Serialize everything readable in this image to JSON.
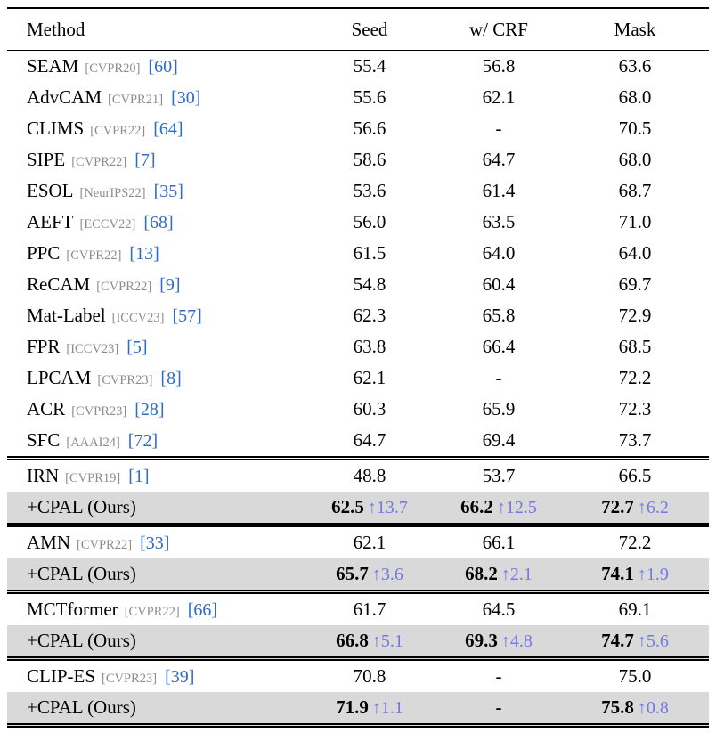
{
  "colors": {
    "citation": "#2e6bc6",
    "venue": "#8c8c8c",
    "delta": "#7577e8",
    "ours_bg": "#d9d9d9"
  },
  "table": {
    "headers": [
      "Method",
      "Seed",
      "w/ CRF",
      "Mask"
    ],
    "sections": [
      {
        "rows": [
          {
            "method": "SEAM",
            "venue": "[CVPR20]",
            "cite": "[60]",
            "cells": [
              {
                "value": "55.4"
              },
              {
                "value": "56.8"
              },
              {
                "value": "63.6"
              }
            ]
          },
          {
            "method": "AdvCAM",
            "venue": "[CVPR21]",
            "cite": "[30]",
            "cells": [
              {
                "value": "55.6"
              },
              {
                "value": "62.1"
              },
              {
                "value": "68.0"
              }
            ]
          },
          {
            "method": "CLIMS",
            "venue": "[CVPR22]",
            "cite": "[64]",
            "cells": [
              {
                "value": "56.6"
              },
              {
                "value": "-"
              },
              {
                "value": "70.5"
              }
            ]
          },
          {
            "method": "SIPE",
            "venue": "[CVPR22]",
            "cite": "[7]",
            "cells": [
              {
                "value": "58.6"
              },
              {
                "value": "64.7"
              },
              {
                "value": "68.0"
              }
            ]
          },
          {
            "method": "ESOL",
            "venue": "[NeurIPS22]",
            "cite": "[35]",
            "cells": [
              {
                "value": "53.6"
              },
              {
                "value": "61.4"
              },
              {
                "value": "68.7"
              }
            ]
          },
          {
            "method": "AEFT",
            "venue": "[ECCV22]",
            "cite": "[68]",
            "cells": [
              {
                "value": "56.0"
              },
              {
                "value": "63.5"
              },
              {
                "value": "71.0"
              }
            ]
          },
          {
            "method": "PPC",
            "venue": "[CVPR22]",
            "cite": "[13]",
            "cells": [
              {
                "value": "61.5"
              },
              {
                "value": "64.0"
              },
              {
                "value": "64.0"
              }
            ]
          },
          {
            "method": "ReCAM",
            "venue": "[CVPR22]",
            "cite": "[9]",
            "cells": [
              {
                "value": "54.8"
              },
              {
                "value": "60.4"
              },
              {
                "value": "69.7"
              }
            ]
          },
          {
            "method": "Mat-Label",
            "venue": "[ICCV23]",
            "cite": "[57]",
            "cells": [
              {
                "value": "62.3"
              },
              {
                "value": "65.8"
              },
              {
                "value": "72.9"
              }
            ]
          },
          {
            "method": "FPR",
            "venue": "[ICCV23]",
            "cite": "[5]",
            "cells": [
              {
                "value": "63.8"
              },
              {
                "value": "66.4"
              },
              {
                "value": "68.5"
              }
            ]
          },
          {
            "method": "LPCAM",
            "venue": "[CVPR23]",
            "cite": "[8]",
            "cells": [
              {
                "value": "62.1"
              },
              {
                "value": "-"
              },
              {
                "value": "72.2"
              }
            ]
          },
          {
            "method": "ACR",
            "venue": "[CVPR23]",
            "cite": "[28]",
            "cells": [
              {
                "value": "60.3"
              },
              {
                "value": "65.9"
              },
              {
                "value": "72.3"
              }
            ]
          },
          {
            "method": "SFC",
            "venue": "[AAAI24]",
            "cite": "[72]",
            "cells": [
              {
                "value": "64.7"
              },
              {
                "value": "69.4"
              },
              {
                "value": "73.7"
              }
            ]
          }
        ]
      },
      {
        "rows": [
          {
            "method": "IRN",
            "venue": "[CVPR19]",
            "cite": "[1]",
            "cells": [
              {
                "value": "48.8"
              },
              {
                "value": "53.7"
              },
              {
                "value": "66.5"
              }
            ]
          },
          {
            "method": "+CPAL (Ours)",
            "ours": true,
            "cells": [
              {
                "value": "62.5",
                "delta": "↑13.7"
              },
              {
                "value": "66.2",
                "delta": "↑12.5"
              },
              {
                "value": "72.7",
                "delta": "↑6.2"
              }
            ]
          }
        ]
      },
      {
        "rows": [
          {
            "method": "AMN",
            "venue": "[CVPR22]",
            "cite": "[33]",
            "cells": [
              {
                "value": "62.1"
              },
              {
                "value": "66.1"
              },
              {
                "value": "72.2"
              }
            ]
          },
          {
            "method": "+CPAL (Ours)",
            "ours": true,
            "cells": [
              {
                "value": "65.7",
                "delta": "↑3.6"
              },
              {
                "value": "68.2",
                "delta": "↑2.1"
              },
              {
                "value": "74.1",
                "delta": "↑1.9"
              }
            ]
          }
        ]
      },
      {
        "rows": [
          {
            "method": "MCTformer",
            "venue": "[CVPR22]",
            "cite": "[66]",
            "cells": [
              {
                "value": "61.7"
              },
              {
                "value": "64.5"
              },
              {
                "value": "69.1"
              }
            ]
          },
          {
            "method": "+CPAL (Ours)",
            "ours": true,
            "cells": [
              {
                "value": "66.8",
                "delta": "↑5.1"
              },
              {
                "value": "69.3",
                "delta": "↑4.8"
              },
              {
                "value": "74.7",
                "delta": "↑5.6"
              }
            ]
          }
        ]
      },
      {
        "rows": [
          {
            "method": "CLIP-ES",
            "venue": "[CVPR23]",
            "cite": "[39]",
            "cells": [
              {
                "value": "70.8"
              },
              {
                "value": "-"
              },
              {
                "value": "75.0"
              }
            ]
          },
          {
            "method": "+CPAL (Ours)",
            "ours": true,
            "cells": [
              {
                "value": "71.9",
                "delta": "↑1.1"
              },
              {
                "value": "-"
              },
              {
                "value": "75.8",
                "delta": "↑0.8"
              }
            ]
          }
        ]
      }
    ]
  }
}
